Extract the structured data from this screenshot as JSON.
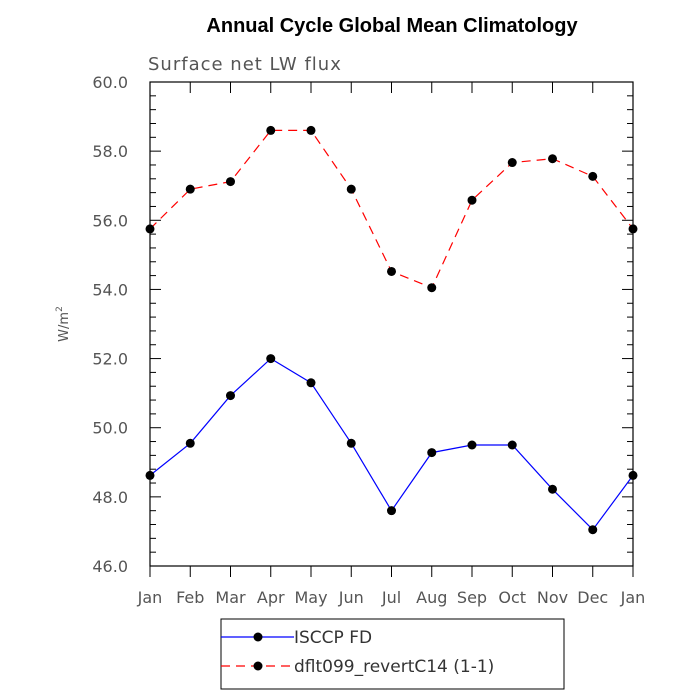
{
  "chart_data": {
    "type": "line",
    "title": "Annual Cycle Global Mean Climatology",
    "subtitle": "Surface net LW flux",
    "xlabel": "",
    "ylabel": "W/m",
    "ylabel_superscript": "2",
    "categories": [
      "Jan",
      "Feb",
      "Mar",
      "Apr",
      "May",
      "Jun",
      "Jul",
      "Aug",
      "Sep",
      "Oct",
      "Nov",
      "Dec",
      "Jan"
    ],
    "ylim": [
      46.0,
      60.0
    ],
    "yticks": [
      "46.0",
      "48.0",
      "50.0",
      "52.0",
      "54.0",
      "56.0",
      "58.0",
      "60.0"
    ],
    "grid": false,
    "legend_position": "bottom",
    "series": [
      {
        "name": "ISCCP FD",
        "color": "#0000ff",
        "line_style": "solid",
        "values": [
          48.62,
          49.55,
          50.93,
          52.0,
          51.3,
          49.55,
          47.6,
          49.28,
          49.5,
          49.5,
          48.22,
          47.05,
          48.62
        ]
      },
      {
        "name": "dflt099_revertC14 (1-1)",
        "color": "#ff0000",
        "line_style": "dashed",
        "values": [
          55.75,
          56.9,
          57.12,
          58.6,
          58.6,
          56.9,
          54.52,
          54.05,
          56.58,
          57.67,
          57.78,
          57.27,
          55.75
        ]
      }
    ]
  }
}
